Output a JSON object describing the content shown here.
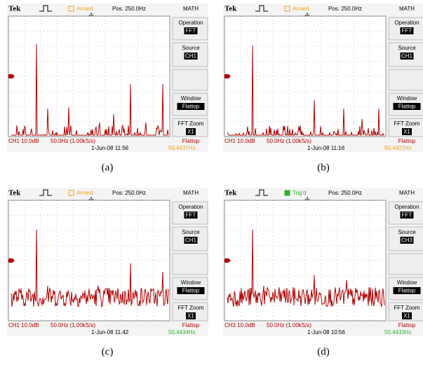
{
  "panels": [
    {
      "caption": "(a)",
      "brand": "Tek",
      "status": "Armed",
      "status_color": "#f0a020",
      "position": "Pos: 250.0Hz",
      "mode": "MATH",
      "menu": [
        {
          "label": "Operation",
          "value": "FFT"
        },
        {
          "label": "Source",
          "value": "CH1"
        },
        {
          "label": "Window",
          "value": "Flattop"
        },
        {
          "label": "FFT Zoom",
          "value": "X1"
        }
      ],
      "channel": "CH1 10.0dB",
      "scale": "50.0Hz (1.00kS/s)",
      "window": "Flattop",
      "datetime": "1-Jun-08 11:56",
      "frequency": "50.4437Hz",
      "frequency_color": "#f0a020"
    },
    {
      "caption": "(b)",
      "brand": "Tek",
      "status": "Armed",
      "status_color": "#f0a020",
      "position": "Pos: 250.0Hz",
      "mode": "MATH",
      "menu": [
        {
          "label": "Operation",
          "value": "FFT"
        },
        {
          "label": "Source",
          "value": "CH1"
        },
        {
          "label": "Window",
          "value": "Flattop"
        },
        {
          "label": "FFT Zoom",
          "value": "X1"
        }
      ],
      "channel": "CH1 10.0dB",
      "scale": "50.0Hz (1.00kS/s)",
      "window": "Flattop",
      "datetime": "1-Jun-08 11:16",
      "frequency": "50.4407Hz",
      "frequency_color": "#f0a020"
    },
    {
      "caption": "(c)",
      "brand": "Tek",
      "status": "Armed",
      "status_color": "#f0a020",
      "position": "Pos: 250.0Hz",
      "mode": "MATH",
      "menu": [
        {
          "label": "Operation",
          "value": "FFT"
        },
        {
          "label": "Source",
          "value": "CH1"
        },
        {
          "label": "Window",
          "value": "Flattop"
        },
        {
          "label": "FFT Zoom",
          "value": "X1"
        }
      ],
      "channel": "CH1 10.0dB",
      "scale": "50.0Hz (1.00kS/s)",
      "window": "Flattop",
      "datetime": "1-Jun-08 11:42",
      "frequency": "50.4434Hz",
      "frequency_color": "#30b030"
    },
    {
      "caption": "(d)",
      "brand": "Tek",
      "status": "Trig'd",
      "status_color": "#30b030",
      "position": "Pos: 250.0Hz",
      "mode": "MATH",
      "menu": [
        {
          "label": "Operation",
          "value": "FFT"
        },
        {
          "label": "Source",
          "value": "CH3"
        },
        {
          "label": "Window",
          "value": "Flattop"
        },
        {
          "label": "FFT Zoom",
          "value": "X1"
        }
      ],
      "channel": "CH3 10.0dB",
      "scale": "50.0Hz (1.00kS/s)",
      "window": "Flattop",
      "datetime": "1-Jun-08 10:56",
      "frequency": "50.4433Hz",
      "frequency_color": "#30b030"
    }
  ]
}
